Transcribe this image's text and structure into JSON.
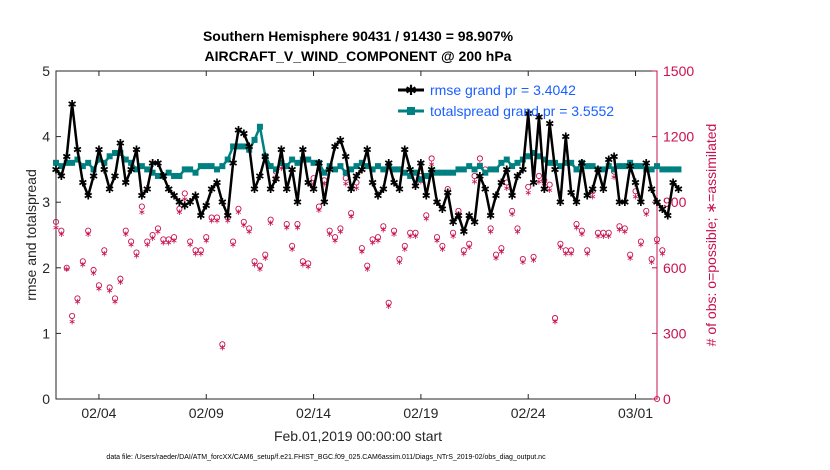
{
  "chart_data": {
    "type": "line",
    "title_line1": "Southern Hemisphere 90431 / 91430 = 98.907%",
    "title_line2": "AIRCRAFT_V_WIND_COMPONENT @ 200 hPa",
    "ylabel": "rmse and totalspread",
    "ylabel_right": "# of obs: o=possible; ∗=assimilated",
    "xlabel": "Feb.01,2019 00:00:00 start",
    "footnote": "data file: /Users/raeder/DAI/ATM_forcXX/CAM6_setup/f.e21.FHIST_BGC.f09_025.CAM6assim.011/Diags_NTrS_2019-02/obs_diag_output.nc",
    "xlim": [
      1,
      29
    ],
    "ylim": [
      0,
      5
    ],
    "ylim_right": [
      0,
      1500
    ],
    "x_ticks": [
      3,
      8,
      13,
      18,
      23,
      28
    ],
    "x_tick_labels": [
      "02/04",
      "02/09",
      "02/14",
      "02/19",
      "02/24",
      "03/01"
    ],
    "y_ticks": [
      0,
      1,
      2,
      3,
      4,
      5
    ],
    "y_tick_labels": [
      "0",
      "1",
      "2",
      "3",
      "4",
      "5"
    ],
    "y_right_ticks": [
      0,
      300,
      600,
      900,
      1200,
      1500
    ],
    "y_right_tick_labels": [
      "0",
      "300",
      "600",
      "900",
      "1200",
      "1500"
    ],
    "legend": [
      {
        "name": "rmse grand pr = 3.4042",
        "color": "#000000"
      },
      {
        "name": "totalspread grand pr = 3.5552",
        "color": "#008080"
      }
    ],
    "x_start": 1.0,
    "x_step": 0.25,
    "series": [
      {
        "name": "rmse",
        "color": "#000000",
        "values": [
          3.5,
          3.4,
          3.7,
          4.5,
          3.8,
          3.3,
          3.1,
          3.4,
          3.8,
          3.5,
          3.2,
          3.4,
          3.9,
          3.3,
          3.5,
          3.8,
          3.1,
          3.2,
          3.6,
          3.6,
          3.4,
          3.2,
          3.1,
          3.0,
          2.95,
          3.0,
          3.1,
          2.8,
          2.95,
          3.2,
          3.3,
          3.0,
          2.8,
          3.6,
          4.1,
          4.05,
          3.85,
          3.2,
          3.4,
          3.7,
          3.2,
          3.35,
          3.8,
          3.2,
          3.5,
          3.0,
          3.8,
          3.3,
          3.2,
          3.6,
          3.0,
          3.5,
          3.85,
          3.95,
          3.7,
          3.2,
          3.4,
          3.5,
          3.8,
          3.3,
          3.1,
          3.2,
          3.6,
          3.3,
          3.2,
          3.8,
          3.5,
          3.25,
          3.6,
          3.1,
          3.5,
          3.0,
          2.9,
          3.15,
          2.7,
          2.8,
          2.55,
          2.8,
          2.7,
          3.4,
          3.2,
          2.8,
          3.1,
          3.3,
          3.5,
          3.1,
          3.4,
          3.5,
          4.35,
          3.3,
          4.3,
          3.2,
          4.2,
          3.5,
          3.0,
          4.0,
          3.15,
          3.0,
          3.6,
          3.1,
          3.2,
          3.5,
          3.2,
          3.65,
          3.7,
          3.0,
          3.0,
          3.55,
          3.3,
          3.0,
          3.6,
          3.2,
          3.0,
          2.9,
          2.8,
          3.3,
          3.2
        ]
      },
      {
        "name": "totalspread",
        "color": "#008080",
        "values": [
          3.6,
          3.55,
          3.6,
          3.6,
          3.65,
          3.55,
          3.6,
          3.5,
          3.65,
          3.6,
          3.7,
          3.75,
          3.75,
          3.65,
          3.6,
          3.5,
          3.55,
          3.5,
          3.45,
          3.4,
          3.4,
          3.45,
          3.4,
          3.4,
          3.5,
          3.5,
          3.45,
          3.55,
          3.55,
          3.55,
          3.5,
          3.55,
          3.65,
          3.85,
          3.85,
          3.85,
          3.8,
          3.95,
          4.15,
          3.7,
          3.55,
          3.5,
          3.6,
          3.55,
          3.65,
          3.6,
          3.65,
          3.65,
          3.6,
          3.6,
          3.45,
          3.55,
          3.5,
          3.55,
          3.45,
          3.5,
          3.55,
          3.6,
          3.55,
          3.5,
          3.55,
          3.5,
          3.55,
          3.5,
          3.5,
          3.45,
          3.4,
          3.45,
          3.35,
          3.4,
          3.45,
          3.45,
          3.45,
          3.45,
          3.45,
          3.5,
          3.5,
          3.55,
          3.5,
          3.55,
          3.45,
          3.5,
          3.5,
          3.6,
          3.65,
          3.55,
          3.6,
          3.65,
          3.7,
          3.75,
          3.7,
          3.65,
          3.6,
          3.6,
          3.55,
          3.6,
          3.6,
          3.5,
          3.6,
          3.55,
          3.55,
          3.5,
          3.5,
          3.55,
          3.5,
          3.55,
          3.55,
          3.6,
          3.55,
          3.55,
          3.5,
          3.5,
          3.55,
          3.5,
          3.5,
          3.5,
          3.5
        ]
      },
      {
        "name": "obs possible",
        "color": "#c8114f",
        "axis": "right",
        "values": [
          810,
          770,
          600,
          380,
          460,
          630,
          770,
          590,
          520,
          680,
          510,
          460,
          550,
          770,
          720,
          670,
          880,
          720,
          750,
          780,
          730,
          730,
          740,
          870,
          940,
          720,
          680,
          680,
          740,
          830,
          830,
          250,
          830,
          720,
          870,
          810,
          780,
          630,
          610,
          660,
          820,
          1040,
          1080,
          800,
          700,
          800,
          630,
          620,
          1010,
          880,
          1000,
          770,
          740,
          780,
          1010,
          850,
          990,
          690,
          610,
          730,
          740,
          790,
          440,
          770,
          640,
          700,
          760,
          760,
          1020,
          840,
          1100,
          740,
          700,
          960,
          760,
          860,
          680,
          710,
          1020,
          1100,
          1050,
          780,
          660,
          690,
          990,
          860,
          780,
          640,
          970,
          650,
          1020,
          1000,
          980,
          370,
          710,
          680,
          680,
          800,
          770,
          680,
          950,
          760,
          760,
          760,
          1040,
          790,
          780,
          660,
          950,
          720,
          860,
          640,
          730,
          680
        ]
      },
      {
        "name": "obs assimilated",
        "color": "#c8114f",
        "axis": "right",
        "values": [
          790,
          760,
          600,
          360,
          450,
          620,
          760,
          580,
          510,
          670,
          500,
          450,
          540,
          760,
          710,
          660,
          860,
          710,
          740,
          770,
          720,
          720,
          730,
          860,
          920,
          710,
          670,
          670,
          730,
          820,
          820,
          240,
          820,
          710,
          860,
          800,
          770,
          620,
          600,
          650,
          810,
          1020,
          1060,
          790,
          690,
          790,
          620,
          610,
          990,
          870,
          990,
          760,
          730,
          770,
          990,
          840,
          970,
          680,
          600,
          720,
          730,
          780,
          430,
          760,
          630,
          690,
          750,
          750,
          1000,
          830,
          1080,
          730,
          690,
          940,
          750,
          850,
          670,
          700,
          1000,
          1080,
          1040,
          770,
          650,
          680,
          970,
          850,
          770,
          630,
          950,
          640,
          1000,
          990,
          960,
          360,
          700,
          670,
          670,
          790,
          760,
          670,
          930,
          750,
          750,
          750,
          1020,
          780,
          770,
          650,
          930,
          710,
          850,
          630,
          720,
          670
        ]
      }
    ]
  }
}
